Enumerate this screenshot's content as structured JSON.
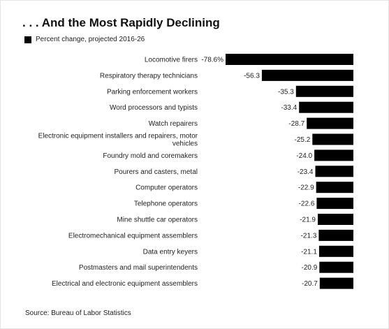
{
  "title": ". . . And the Most Rapidly Declining",
  "legend": {
    "label": "Percent change, projected 2016-26",
    "color": "#000000"
  },
  "source": "Source: Bureau of Labor Statistics",
  "chart_data": {
    "type": "bar",
    "orientation": "horizontal",
    "categories": [
      "Locomotive firers",
      "Respiratory therapy technicians",
      "Parking enforcement workers",
      "Word processors and typists",
      "Watch repairers",
      "Electronic equipment installers and repairers, motor vehicles",
      "Foundry mold and coremakers",
      "Pourers and casters, metal",
      "Computer operators",
      "Telephone operators",
      "Mine shuttle car operators",
      "Electromechanical equipment assemblers",
      "Data entry keyers",
      "Postmasters and mail superintendents",
      "Electrical and electronic equipment assemblers"
    ],
    "category_lines": [
      [
        "Locomotive firers"
      ],
      [
        "Respiratory therapy technicians"
      ],
      [
        "Parking enforcement workers"
      ],
      [
        "Word processors and typists"
      ],
      [
        "Watch repairers"
      ],
      [
        "Electronic equipment installers and repairers, motor",
        "vehicles"
      ],
      [
        "Foundry mold and coremakers"
      ],
      [
        "Pourers and casters, metal"
      ],
      [
        "Computer operators"
      ],
      [
        "Telephone operators"
      ],
      [
        "Mine shuttle car operators"
      ],
      [
        "Electromechanical equipment assemblers"
      ],
      [
        "Data entry keyers"
      ],
      [
        "Postmasters and mail superintendents"
      ],
      [
        "Electrical and electronic equipment assemblers"
      ]
    ],
    "series": [
      {
        "values": [
          -78.6,
          -56.3,
          -35.3,
          -33.4,
          -28.7,
          -25.2,
          -24.0,
          -23.4,
          -22.9,
          -22.6,
          -21.9,
          -21.3,
          -21.1,
          -20.9,
          -20.7
        ],
        "labels": [
          "-78.6%",
          "-56.3",
          "-35.3",
          "-33.4",
          "-28.7",
          "-25.2",
          "-24.0",
          "-23.4",
          "-22.9",
          "-22.6",
          "-21.9",
          "-21.3",
          "-21.1",
          "-20.9",
          "-20.7"
        ],
        "color": "#000000"
      }
    ],
    "xlim": [
      -78.6,
      0
    ],
    "grid": false,
    "legend_position": "top-left"
  }
}
